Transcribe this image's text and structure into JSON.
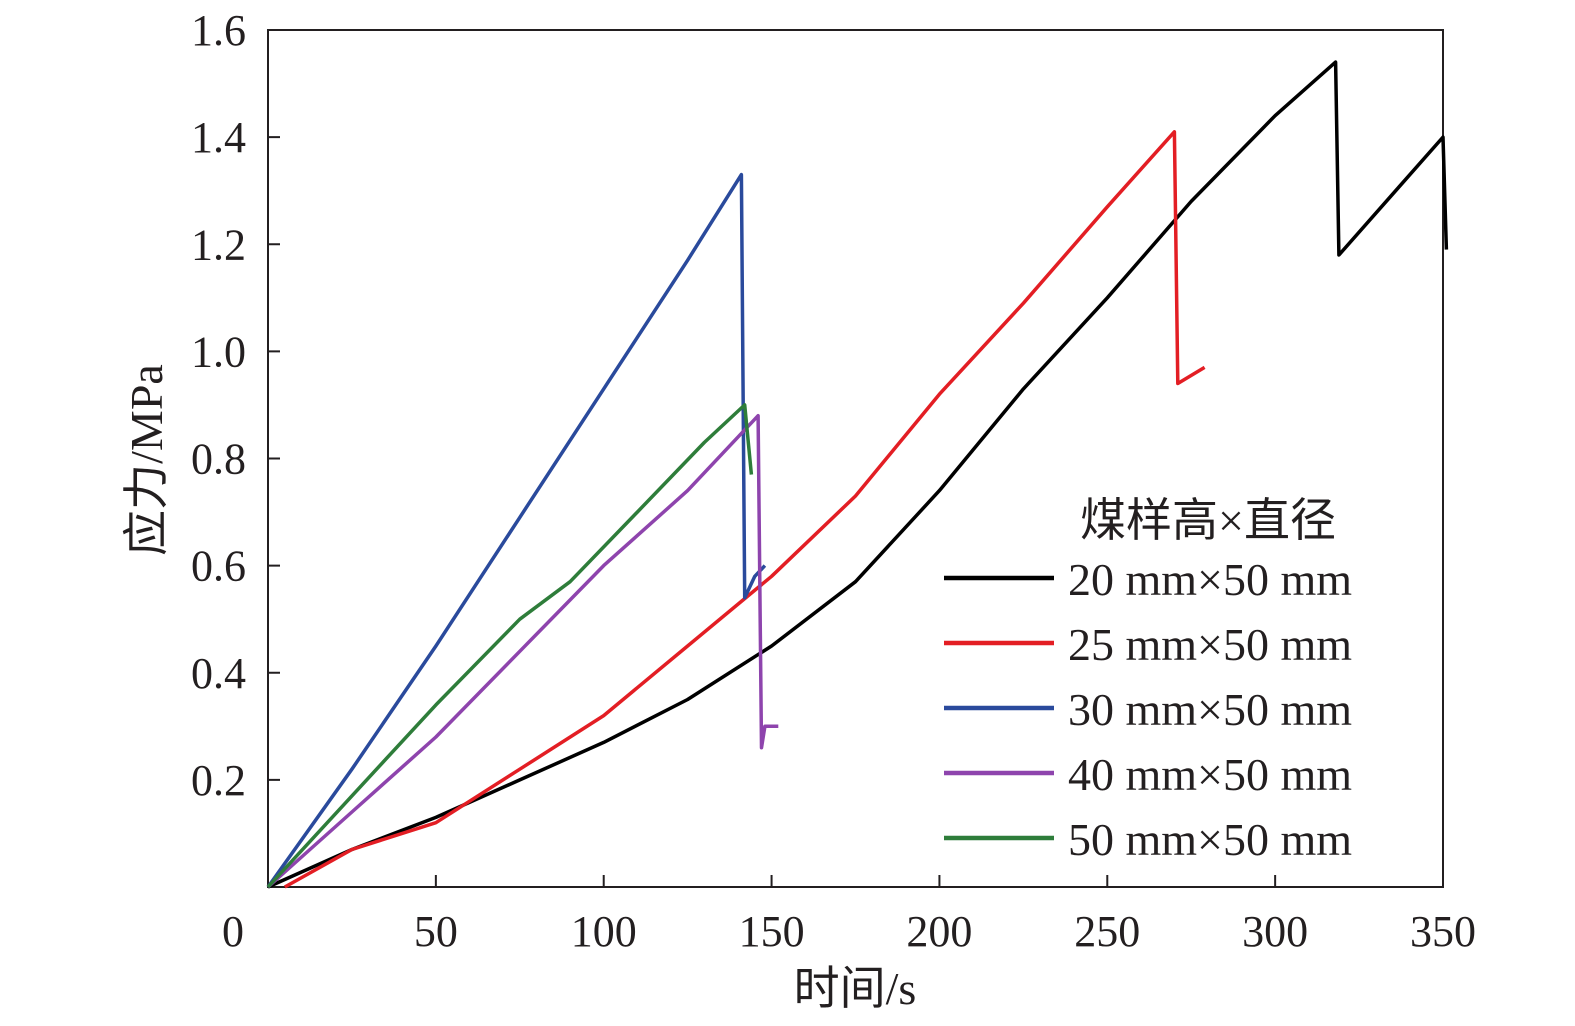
{
  "chart_data": {
    "type": "line",
    "xlabel": "时间/s",
    "ylabel": "应力/MPa",
    "xlim": [
      0,
      350
    ],
    "ylim": [
      0,
      1.6
    ],
    "x_ticks": [
      0,
      50,
      100,
      150,
      200,
      250,
      300,
      350
    ],
    "y_ticks": [
      0.2,
      0.4,
      0.6,
      0.8,
      1.0,
      1.2,
      1.4,
      1.6
    ],
    "x_tick_labels": [
      "0",
      "50",
      "100",
      "150",
      "200",
      "250",
      "300",
      "350"
    ],
    "y_tick_labels": [
      "0.2",
      "0.4",
      "0.6",
      "0.8",
      "1.0",
      "1.2",
      "1.4",
      "1.6"
    ],
    "grid": false,
    "legend_title": "煤样高×直径",
    "legend_position": "bottom-right",
    "series": [
      {
        "name": "20 mm×50 mm",
        "color": "#000000",
        "points": [
          [
            0,
            0
          ],
          [
            25,
            0.07
          ],
          [
            50,
            0.13
          ],
          [
            75,
            0.2
          ],
          [
            100,
            0.27
          ],
          [
            125,
            0.35
          ],
          [
            150,
            0.45
          ],
          [
            175,
            0.57
          ],
          [
            200,
            0.74
          ],
          [
            225,
            0.93
          ],
          [
            250,
            1.1
          ],
          [
            275,
            1.28
          ],
          [
            300,
            1.44
          ],
          [
            318,
            1.54
          ],
          [
            319,
            1.18
          ],
          [
            350,
            1.4
          ],
          [
            351,
            1.19
          ]
        ]
      },
      {
        "name": "25 mm×50 mm",
        "color": "#e31e24",
        "points": [
          [
            5,
            0
          ],
          [
            25,
            0.07
          ],
          [
            50,
            0.12
          ],
          [
            75,
            0.22
          ],
          [
            100,
            0.32
          ],
          [
            125,
            0.45
          ],
          [
            150,
            0.58
          ],
          [
            175,
            0.73
          ],
          [
            200,
            0.92
          ],
          [
            225,
            1.09
          ],
          [
            250,
            1.27
          ],
          [
            270,
            1.41
          ],
          [
            271,
            0.94
          ],
          [
            279,
            0.97
          ]
        ]
      },
      {
        "name": "30 mm×50 mm",
        "color": "#2a4a9c",
        "points": [
          [
            0,
            0
          ],
          [
            25,
            0.22
          ],
          [
            50,
            0.45
          ],
          [
            75,
            0.69
          ],
          [
            100,
            0.93
          ],
          [
            125,
            1.17
          ],
          [
            141,
            1.33
          ],
          [
            142,
            0.54
          ],
          [
            145,
            0.58
          ],
          [
            148,
            0.6
          ]
        ]
      },
      {
        "name": "40 mm×50 mm",
        "color": "#8e44ad",
        "points": [
          [
            0,
            0
          ],
          [
            25,
            0.14
          ],
          [
            50,
            0.28
          ],
          [
            75,
            0.44
          ],
          [
            100,
            0.6
          ],
          [
            125,
            0.74
          ],
          [
            146,
            0.88
          ],
          [
            147,
            0.26
          ],
          [
            148,
            0.3
          ],
          [
            152,
            0.3
          ]
        ]
      },
      {
        "name": "50 mm×50 mm",
        "color": "#2e7d3a",
        "points": [
          [
            0,
            0
          ],
          [
            25,
            0.17
          ],
          [
            50,
            0.34
          ],
          [
            75,
            0.5
          ],
          [
            90,
            0.57
          ],
          [
            110,
            0.7
          ],
          [
            130,
            0.83
          ],
          [
            142,
            0.9
          ],
          [
            144,
            0.77
          ]
        ]
      }
    ]
  }
}
